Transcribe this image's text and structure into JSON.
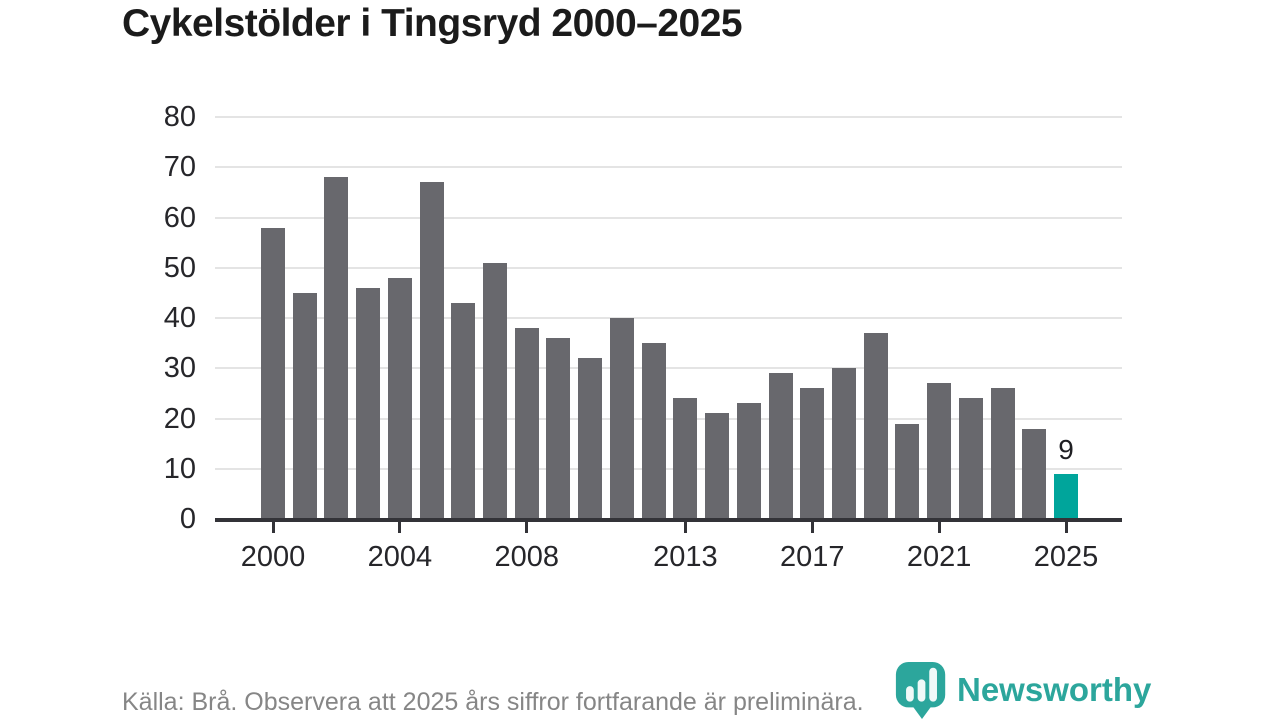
{
  "title": "Cykelstölder i Tingsryd 2000–2025",
  "footer": {
    "source_note": "Källa: Brå. Observera att 2025 års siffror fortfarande är preliminära.",
    "brand_name": "Newsworthy"
  },
  "colors": {
    "bar": "#68686d",
    "highlight": "#00a59b",
    "grid": "#e4e4e4",
    "axis": "#333338",
    "title_text": "#1b1b1b",
    "axis_text": "#26262a",
    "footer_text": "#868686",
    "brand": "#2ca69c"
  },
  "chart_data": {
    "type": "bar",
    "title": "Cykelstölder i Tingsryd 2000–2025",
    "series_name": "Cykelstölder",
    "x": [
      2000,
      2001,
      2002,
      2003,
      2004,
      2005,
      2006,
      2007,
      2008,
      2009,
      2010,
      2011,
      2012,
      2013,
      2014,
      2015,
      2016,
      2017,
      2018,
      2019,
      2020,
      2021,
      2022,
      2023,
      2024,
      2025
    ],
    "values": [
      58,
      45,
      68,
      46,
      48,
      67,
      43,
      51,
      38,
      36,
      32,
      40,
      35,
      24,
      21,
      23,
      29,
      26,
      30,
      37,
      19,
      27,
      24,
      26,
      18,
      9
    ],
    "xlabel": "",
    "ylabel": "",
    "ylim": [
      0,
      80
    ],
    "yticks": [
      0,
      10,
      20,
      30,
      40,
      50,
      60,
      70,
      80
    ],
    "xtick_years": [
      2000,
      2004,
      2008,
      2013,
      2017,
      2021,
      2025
    ],
    "grid": "horizontal",
    "legend": "none",
    "bar_color": "#68686d",
    "highlight": {
      "year": 2025,
      "label": "9",
      "color": "#00a59b"
    }
  }
}
